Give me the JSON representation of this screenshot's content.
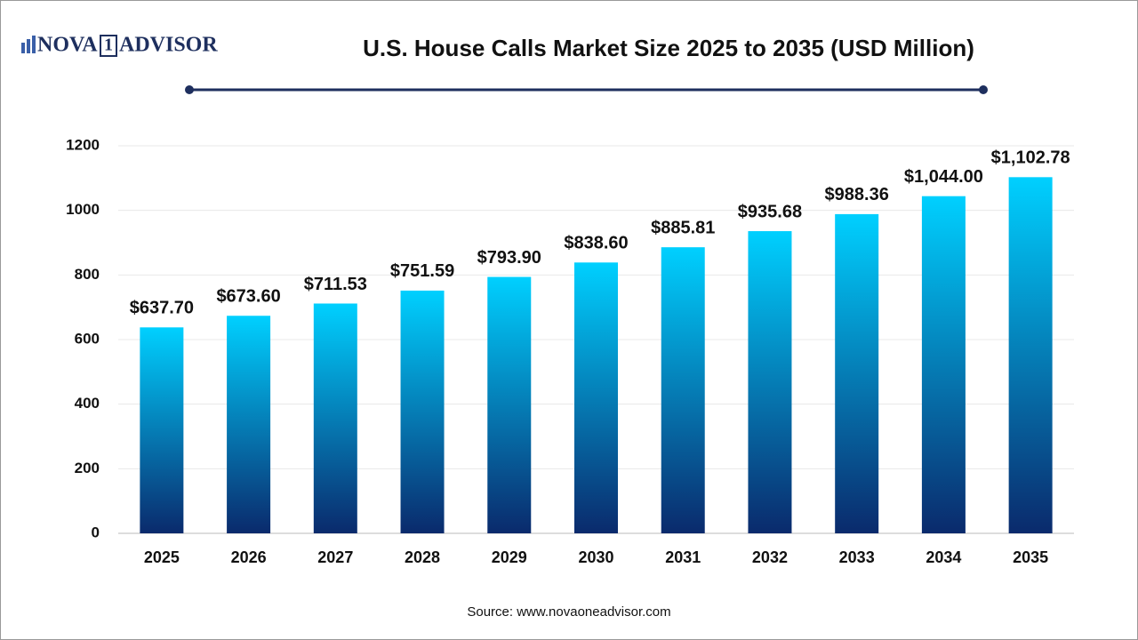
{
  "logo": {
    "left": "NOVA",
    "mark": "1",
    "right": "ADVISOR"
  },
  "chart_data": {
    "type": "bar",
    "title": "U.S. House Calls Market Size 2025 to 2035 (USD Million)",
    "categories": [
      "2025",
      "2026",
      "2027",
      "2028",
      "2029",
      "2030",
      "2031",
      "2032",
      "2033",
      "2034",
      "2035"
    ],
    "values": [
      637.7,
      673.6,
      711.53,
      751.59,
      793.9,
      838.6,
      885.81,
      935.68,
      988.36,
      1044.0,
      1102.78
    ],
    "value_labels": [
      "$637.70",
      "$673.60",
      "$711.53",
      "$751.59",
      "$793.90",
      "$838.60",
      "$885.81",
      "$935.68",
      "$988.36",
      "$1,044.00",
      "$1,102.78"
    ],
    "color": [
      "#00d0ff",
      "#0a2a6c"
    ],
    "ylim": [
      0,
      1200
    ],
    "yticks": [
      0,
      200,
      400,
      600,
      800,
      1000,
      1200
    ],
    "grid": true
  },
  "source": "Source: www.novaoneadvisor.com"
}
